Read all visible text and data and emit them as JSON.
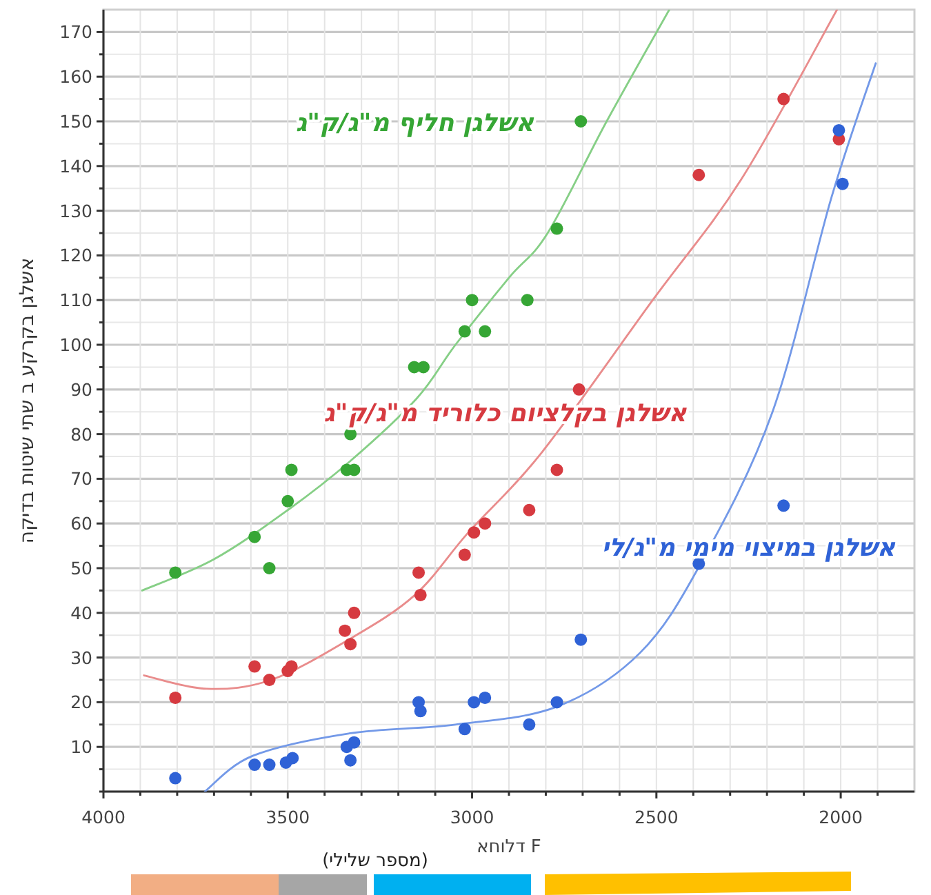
{
  "chart_data": {
    "type": "scatter",
    "xlabel": "דלוחא F",
    "ylabel": "אשלגן בקרקע ב שתי שיטות בדיקה",
    "xlim": [
      4000,
      1800
    ],
    "ylim": [
      0,
      175
    ],
    "xticks": [
      4000,
      {
        "value": 3900,
        "label": null
      },
      {
        "value": 3800,
        "label": null
      },
      {
        "value": 3700,
        "label": null
      },
      {
        "value": 3600,
        "label": null
      },
      3500,
      {
        "value": 3400,
        "label": null
      },
      {
        "value": 3300,
        "label": null
      },
      {
        "value": 3200,
        "label": null
      },
      {
        "value": 3100,
        "label": null
      },
      3000,
      {
        "value": 2900,
        "label": null
      },
      {
        "value": 2800,
        "label": null
      },
      {
        "value": 2700,
        "label": null
      },
      {
        "value": 2600,
        "label": null
      },
      2500,
      {
        "value": 2400,
        "label": null
      },
      {
        "value": 2300,
        "label": null
      },
      {
        "value": 2200,
        "label": null
      },
      {
        "value": 2100,
        "label": null
      },
      2000,
      {
        "value": 1900,
        "label": null
      }
    ],
    "yticks": [
      {
        "value": 0,
        "label": null
      },
      {
        "value": 5,
        "label": null
      },
      10,
      {
        "value": 15,
        "label": null
      },
      20,
      {
        "value": 25,
        "label": null
      },
      30,
      {
        "value": 35,
        "label": null
      },
      40,
      {
        "value": 45,
        "label": null
      },
      50,
      {
        "value": 55,
        "label": null
      },
      60,
      {
        "value": 65,
        "label": null
      },
      70,
      {
        "value": 75,
        "label": null
      },
      80,
      {
        "value": 85,
        "label": null
      },
      90,
      {
        "value": 95,
        "label": null
      },
      100,
      {
        "value": 105,
        "label": null
      },
      110,
      {
        "value": 115,
        "label": null
      },
      120,
      {
        "value": 125,
        "label": null
      },
      130,
      {
        "value": 135,
        "label": null
      },
      140,
      {
        "value": 145,
        "label": null
      },
      150,
      {
        "value": 155,
        "label": null
      },
      160,
      {
        "value": 165,
        "label": null
      },
      170
    ],
    "grid": true,
    "marker": "circle",
    "series": [
      {
        "name": "אשלגן חליף מ\"ג/ק\"ג",
        "color": "#36a635",
        "x": [
          3805,
          3590,
          3550,
          3500,
          3490,
          3340,
          3320,
          3330,
          3157,
          3132,
          3020,
          3000,
          2965,
          2850,
          2770,
          2705
        ],
        "values": [
          49,
          57,
          50,
          65,
          72,
          72,
          72,
          80,
          95,
          95,
          103,
          110,
          103,
          110,
          126,
          150
        ]
      },
      {
        "name": "אשלגן בקלציום כלוריד מ\"ג/ק\"ג",
        "color": "#d63a40",
        "x": [
          3805,
          3590,
          3550,
          3500,
          3490,
          3345,
          3330,
          3320,
          3145,
          3140,
          3020,
          2995,
          2965,
          2845,
          2770,
          2710,
          2385,
          2155,
          2005
        ],
        "values": [
          21,
          28,
          25,
          27,
          28,
          36,
          33,
          40,
          49,
          44,
          53,
          58,
          60,
          63,
          72,
          90,
          138,
          155,
          146
        ]
      },
      {
        "name": "אשלגן במיצוי מימי מ\"ג/לי",
        "color": "#2f62d6",
        "x": [
          3805,
          3590,
          3550,
          3505,
          3487,
          3340,
          3320,
          3330,
          3145,
          3140,
          3020,
          2995,
          2965,
          2845,
          2770,
          2705,
          2385,
          2155,
          2005,
          1995
        ],
        "values": [
          3,
          6,
          6,
          6.5,
          7.5,
          10,
          11,
          7,
          20,
          18,
          14,
          20,
          21,
          15,
          20,
          34,
          51,
          64,
          148,
          136
        ]
      },
      {
        "type": "line",
        "marker": "none",
        "color": "#86cf86",
        "x": [
          3895,
          3700,
          3500,
          3330,
          3150,
          3045,
          2900,
          2795,
          2635,
          2465
        ],
        "values": [
          45,
          52,
          63,
          74,
          88,
          100,
          115,
          125,
          150,
          175
        ]
      },
      {
        "type": "line",
        "marker": "none",
        "color": "#e98c8c",
        "x": [
          3890,
          3720,
          3545,
          3335,
          3155,
          3010,
          2810,
          2510,
          2270,
          2010
        ],
        "values": [
          26,
          23,
          25,
          34,
          44,
          58,
          76,
          110,
          137,
          175
        ]
      },
      {
        "type": "line",
        "marker": "none",
        "color": "#7399e8",
        "x": [
          3725,
          3595,
          3335,
          3045,
          2770,
          2545,
          2380,
          2185,
          2025,
          1905
        ],
        "values": [
          0,
          8,
          13,
          15,
          19,
          31,
          51,
          85,
          133,
          163
        ]
      }
    ],
    "annotations": [
      "(מספר שלילי)"
    ]
  }
}
